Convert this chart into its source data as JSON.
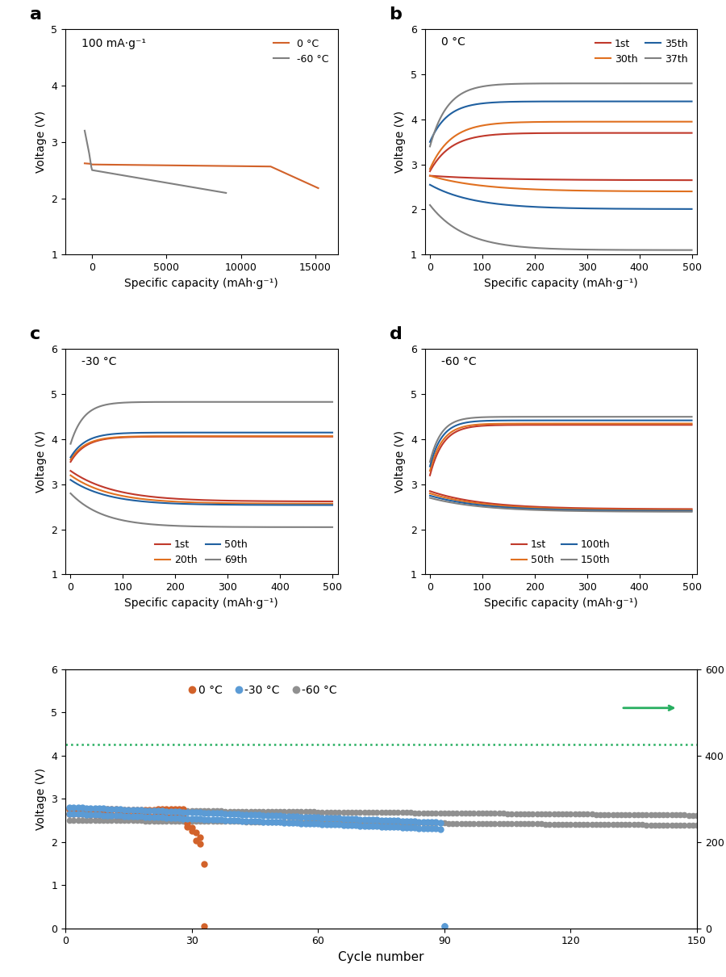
{
  "colors": {
    "red": "#c0392b",
    "orange": "#e07020",
    "blue": "#2060a0",
    "gray": "#808080",
    "orange_a": "#d2622a",
    "gray_60": "#909090",
    "blue_30": "#5b9bd5",
    "green": "#27ae60"
  },
  "panel_a": {
    "annotation": "100 mA·g⁻¹",
    "xlabel": "Specific capacity (mAh·g⁻¹)",
    "ylabel": "Voltage (V)",
    "ylim": [
      1.0,
      5.0
    ],
    "yticks": [
      1.0,
      2.0,
      3.0,
      4.0,
      5.0
    ],
    "xticks": [
      0,
      5000,
      10000,
      15000
    ]
  },
  "panel_b": {
    "annotation": "0 °C",
    "xlabel": "Specific capacity (mAh·g⁻¹)",
    "ylabel": "Voltage (V)",
    "ylim": [
      1.0,
      6.0
    ],
    "yticks": [
      1.0,
      2.0,
      3.0,
      4.0,
      5.0,
      6.0
    ],
    "xticks": [
      0,
      100,
      200,
      300,
      400,
      500
    ],
    "legend_labels": [
      "1st",
      "30th",
      "35th",
      "37th"
    ]
  },
  "panel_c": {
    "annotation": "-30 °C",
    "xlabel": "Specific capacity (mAh·g⁻¹)",
    "ylabel": "Voltage (V)",
    "ylim": [
      1.0,
      6.0
    ],
    "yticks": [
      1.0,
      2.0,
      3.0,
      4.0,
      5.0,
      6.0
    ],
    "xticks": [
      0,
      100,
      200,
      300,
      400,
      500
    ],
    "legend_labels": [
      "1st",
      "20th",
      "50th",
      "69th"
    ]
  },
  "panel_d": {
    "annotation": "-60 °C",
    "xlabel": "Specific capacity (mAh·g⁻¹)",
    "ylabel": "Voltage (V)",
    "ylim": [
      1.0,
      6.0
    ],
    "yticks": [
      1.0,
      2.0,
      3.0,
      4.0,
      5.0,
      6.0
    ],
    "xticks": [
      0,
      100,
      200,
      300,
      400,
      500
    ],
    "legend_labels": [
      "1st",
      "50th",
      "100th",
      "150th"
    ]
  },
  "panel_e": {
    "xlabel": "Cycle number",
    "ylabel_left": "Voltage (V)",
    "ylabel_right": "Specific capacity (mAh·g⁻¹)",
    "ylim_left": [
      0.0,
      6.0
    ],
    "ylim_right": [
      0,
      600
    ],
    "yticks_left": [
      0.0,
      1.0,
      2.0,
      3.0,
      4.0,
      5.0,
      6.0
    ],
    "yticks_right": [
      0,
      200,
      400,
      600
    ],
    "xticks": [
      0,
      30,
      60,
      90,
      120,
      150
    ],
    "xlim": [
      0,
      150
    ],
    "capacity_line_voltage": 4.25,
    "legend_labels": [
      "0 °C",
      "-30 °C",
      "-60 °C"
    ]
  }
}
